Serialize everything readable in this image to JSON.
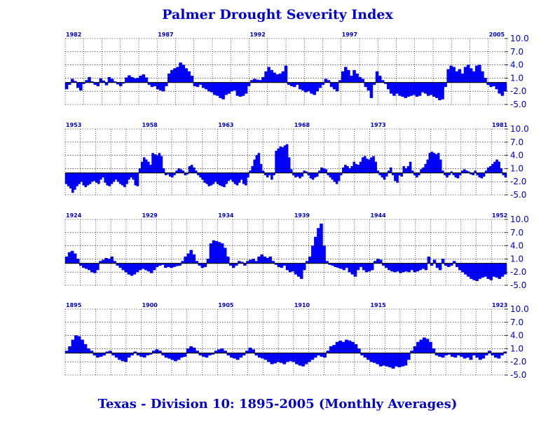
{
  "title": "Palmer Drought Severity Index",
  "subtitle": "Texas - Division 10:  1895-2005 (Monthly Averages)",
  "colors": {
    "fill": "#0000ff",
    "text": "#0000cc",
    "grid": "#000000"
  },
  "chart_data": [
    {
      "type": "area",
      "y_tick_labels": [
        "10.0",
        "7.0",
        "4.0",
        "1.0",
        "-2.0",
        "-5.0"
      ],
      "ylim": [
        -5.0,
        10.0
      ],
      "start_year": 1982,
      "year_labels": [
        "1982",
        "1987",
        "1992",
        "1997",
        "2005"
      ],
      "grid": true,
      "values": [
        -1.5,
        -0.5,
        0.8,
        0.3,
        -1.2,
        -1.8,
        -0.3,
        0.5,
        1.2,
        0.2,
        -0.5,
        -0.8,
        0.9,
        0.4,
        -0.6,
        1.2,
        0.8,
        0.2,
        -0.4,
        -0.8,
        -0.2,
        1.1,
        1.6,
        1.2,
        0.9,
        1.0,
        1.5,
        1.8,
        1.1,
        -0.5,
        -1.0,
        -0.8,
        -1.5,
        -1.8,
        -2.0,
        -0.8,
        2.0,
        2.8,
        3.2,
        3.5,
        4.5,
        4.0,
        3.2,
        2.5,
        1.5,
        -0.8,
        -1.0,
        -0.5,
        -1.2,
        -1.5,
        -2.0,
        -2.2,
        -2.8,
        -3.0,
        -3.5,
        -3.8,
        -2.8,
        -2.5,
        -2.0,
        -1.8,
        -3.0,
        -3.2,
        -3.0,
        -2.5,
        -0.8,
        0.5,
        0.8,
        0.6,
        0.5,
        1.2,
        2.5,
        3.5,
        2.8,
        2.2,
        1.8,
        2.0,
        2.5,
        3.8,
        -0.5,
        -0.8,
        -1.0,
        -0.5,
        -1.5,
        -1.8,
        -2.2,
        -2.0,
        -2.5,
        -2.8,
        -2.0,
        -1.2,
        -0.5,
        0.8,
        0.5,
        -1.0,
        -1.5,
        -2.0,
        0.5,
        2.5,
        3.5,
        2.8,
        1.5,
        2.8,
        2.0,
        1.2,
        0.8,
        -1.0,
        -1.8,
        -3.5,
        -0.5,
        2.5,
        1.5,
        0.5,
        -0.3,
        -1.5,
        -2.5,
        -3.0,
        -2.5,
        -3.0,
        -3.2,
        -3.5,
        -3.2,
        -3.0,
        -2.8,
        -3.2,
        -3.0,
        -2.2,
        -2.5,
        -3.0,
        -2.8,
        -3.2,
        -3.5,
        -4.0,
        -3.8,
        -1.0,
        3.0,
        3.8,
        3.5,
        2.5,
        3.0,
        2.0,
        3.5,
        4.0,
        3.2,
        2.5,
        3.8,
        4.0,
        2.5,
        1.0,
        -0.5,
        -1.0,
        -0.8,
        -1.5,
        -2.5,
        -3.0,
        -2.0
      ]
    },
    {
      "type": "area",
      "y_tick_labels": [
        "10.0",
        "7.0",
        "4.0",
        "1.0",
        "-2.0",
        "-5.0"
      ],
      "ylim": [
        -5.0,
        10.0
      ],
      "start_year": 1953,
      "year_labels": [
        "1953",
        "1958",
        "1963",
        "1968",
        "1973",
        "1981"
      ],
      "grid": true,
      "values": [
        -2.5,
        -3.0,
        -3.5,
        -4.5,
        -3.8,
        -3.0,
        -2.5,
        -2.0,
        -2.8,
        -3.2,
        -2.8,
        -2.5,
        -2.0,
        -1.8,
        -2.2,
        -2.5,
        -1.5,
        -1.0,
        -2.2,
        -2.8,
        -3.0,
        -2.5,
        -2.0,
        -1.5,
        -2.0,
        -2.5,
        -2.8,
        -3.2,
        -2.5,
        -1.5,
        -1.0,
        -1.5,
        -2.8,
        -3.0,
        1.0,
        2.5,
        3.5,
        3.0,
        2.5,
        1.8,
        4.5,
        4.2,
        4.0,
        4.5,
        3.8,
        1.0,
        -0.5,
        -0.3,
        -0.8,
        -1.0,
        -0.5,
        0.5,
        1.0,
        0.8,
        0.5,
        -0.5,
        -0.3,
        1.5,
        1.8,
        1.2,
        0.5,
        -0.5,
        -1.0,
        -1.5,
        -2.2,
        -2.5,
        -3.0,
        -2.8,
        -2.5,
        -2.0,
        -2.5,
        -2.8,
        -3.0,
        -3.2,
        -2.5,
        -1.8,
        -1.5,
        -2.0,
        -2.5,
        -2.8,
        -2.2,
        -1.5,
        -2.5,
        -2.8,
        -1.0,
        0.5,
        1.5,
        3.0,
        4.0,
        4.5,
        2.0,
        0.5,
        -0.5,
        -1.0,
        -0.5,
        -1.5,
        -0.5,
        5.0,
        5.5,
        6.0,
        5.8,
        6.2,
        6.5,
        3.5,
        0.8,
        -0.5,
        -1.0,
        -0.8,
        -1.2,
        -0.8,
        0.5,
        0.3,
        -0.5,
        -1.2,
        -1.5,
        -1.0,
        -0.8,
        0.5,
        1.2,
        1.0,
        0.8,
        -0.5,
        -1.0,
        -1.5,
        -2.0,
        -2.5,
        -1.8,
        -0.5,
        1.2,
        1.8,
        1.5,
        1.0,
        1.5,
        2.5,
        2.0,
        1.8,
        2.5,
        3.5,
        3.8,
        3.2,
        3.0,
        3.5,
        3.8,
        2.5,
        0.5,
        -0.5,
        -1.0,
        -1.5,
        -0.8,
        0.5,
        1.2,
        -0.5,
        -1.8,
        -2.2,
        -0.5,
        -0.8,
        1.5,
        1.0,
        1.5,
        2.5,
        0.5,
        -0.5,
        -1.0,
        -0.5,
        0.8,
        1.2,
        2.0,
        3.0,
        4.5,
        4.8,
        4.5,
        4.2,
        4.5,
        3.0,
        0.5,
        -0.5,
        -1.0,
        -0.5,
        0.3,
        -0.5,
        -1.0,
        -1.2,
        -0.5,
        0.5,
        0.8,
        0.5,
        0.3,
        -0.3,
        -0.5,
        0.5,
        -0.5,
        -1.0,
        -1.2,
        -0.8,
        0.5,
        1.2,
        1.5,
        2.0,
        2.5,
        3.0,
        2.5,
        1.0,
        -0.5,
        -1.0
      ]
    },
    {
      "type": "area",
      "y_tick_labels": [
        "10.0",
        "7.0",
        "4.0",
        "1.0",
        "-2.0",
        "-5.0"
      ],
      "ylim": [
        -5.0,
        10.0
      ],
      "start_year": 1924,
      "year_labels": [
        "1924",
        "1929",
        "1934",
        "1939",
        "1944",
        "1952"
      ],
      "grid": true,
      "values": [
        1.5,
        2.5,
        2.8,
        2.2,
        1.0,
        -0.5,
        -1.0,
        -1.2,
        -1.5,
        -2.0,
        -2.2,
        -1.5,
        0.5,
        0.8,
        1.2,
        1.0,
        1.5,
        0.5,
        -0.5,
        -1.0,
        -1.5,
        -2.0,
        -2.5,
        -2.8,
        -2.5,
        -2.0,
        -1.5,
        -1.2,
        -1.5,
        -1.8,
        -2.2,
        -1.5,
        -0.8,
        -0.5,
        -0.3,
        -1.0,
        -0.8,
        -1.0,
        -0.8,
        -0.6,
        -0.5,
        0.5,
        1.5,
        2.2,
        3.0,
        2.0,
        0.5,
        -0.5,
        -1.0,
        -0.8,
        1.0,
        4.5,
        5.2,
        5.0,
        4.8,
        4.5,
        3.5,
        1.5,
        -0.5,
        -1.0,
        -0.5,
        0.5,
        0.3,
        -0.5,
        0.5,
        0.8,
        1.0,
        0.5,
        1.5,
        2.0,
        1.5,
        1.2,
        1.5,
        0.5,
        -0.3,
        -0.8,
        -1.0,
        -0.5,
        -1.5,
        -2.0,
        -1.8,
        -2.5,
        -3.0,
        -3.5,
        -1.5,
        0.5,
        1.5,
        4.0,
        6.0,
        8.0,
        9.0,
        4.0,
        0.5,
        -0.3,
        -0.5,
        -0.8,
        -1.0,
        -1.2,
        -1.5,
        -1.0,
        -2.0,
        -2.5,
        -3.0,
        -1.5,
        -0.8,
        -1.5,
        -2.0,
        -1.8,
        -1.5,
        0.5,
        1.0,
        0.8,
        -0.5,
        -1.0,
        -1.5,
        -1.8,
        -2.0,
        -1.8,
        -2.2,
        -2.0,
        -1.8,
        -2.0,
        -1.5,
        -2.0,
        -1.8,
        -1.5,
        -1.2,
        -1.5,
        1.5,
        -0.5,
        0.8,
        -1.0,
        -1.5,
        1.0,
        -0.5,
        -0.8,
        -0.5,
        0.5,
        -0.8,
        -1.5,
        -2.0,
        -2.5,
        -3.0,
        -3.5,
        -3.8,
        -4.0,
        -3.5,
        -3.2,
        -3.0,
        -3.5,
        -3.8,
        -3.0,
        -3.2,
        -3.5,
        -3.0,
        -2.5
      ]
    },
    {
      "type": "area",
      "y_tick_labels": [
        "10.0",
        "7.0",
        "4.0",
        "1.0",
        "-2.0",
        "-5.0"
      ],
      "ylim": [
        -5.0,
        10.0
      ],
      "start_year": 1895,
      "year_labels": [
        "1895",
        "1900",
        "1905",
        "1910",
        "1915",
        "1923"
      ],
      "grid": true,
      "values": [
        0.5,
        1.5,
        3.0,
        4.0,
        3.8,
        3.0,
        2.0,
        1.0,
        0.5,
        -0.5,
        -1.0,
        -0.8,
        -0.5,
        0.3,
        0.5,
        -0.5,
        -1.0,
        -1.5,
        -1.8,
        -2.0,
        -1.0,
        -0.5,
        0.3,
        -0.5,
        -0.8,
        -1.0,
        -0.5,
        -0.3,
        0.5,
        0.8,
        0.5,
        -0.5,
        -1.0,
        -1.2,
        -1.5,
        -1.8,
        -1.5,
        -1.0,
        -0.8,
        1.0,
        1.5,
        1.2,
        0.5,
        -0.5,
        -0.8,
        -1.0,
        -0.5,
        -0.3,
        0.5,
        0.8,
        1.0,
        0.5,
        -0.5,
        -1.0,
        -1.2,
        -1.5,
        -1.0,
        -0.5,
        0.5,
        1.2,
        0.8,
        -0.5,
        -1.0,
        -1.2,
        -1.5,
        -2.0,
        -2.5,
        -2.3,
        -2.0,
        -2.2,
        -2.5,
        -2.0,
        -1.8,
        -2.0,
        -2.5,
        -2.8,
        -3.0,
        -2.5,
        -2.0,
        -1.5,
        -1.0,
        -0.5,
        -0.8,
        -1.0,
        0.5,
        1.5,
        1.8,
        2.5,
        2.8,
        2.5,
        3.0,
        2.8,
        2.5,
        2.0,
        1.0,
        -0.5,
        -1.0,
        -1.5,
        -2.0,
        -2.2,
        -2.5,
        -3.0,
        -2.8,
        -3.0,
        -3.2,
        -3.5,
        -3.0,
        -3.2,
        -3.0,
        -2.8,
        -1.5,
        0.5,
        1.5,
        2.5,
        3.0,
        3.5,
        3.2,
        2.5,
        1.0,
        -0.5,
        -0.8,
        -1.0,
        -0.5,
        -0.3,
        -0.8,
        -1.0,
        -0.5,
        -0.8,
        -1.2,
        -1.0,
        -1.5,
        -0.5,
        -1.0,
        -1.5,
        -1.2,
        -0.5,
        0.5,
        -0.5,
        -1.0,
        -1.2,
        -0.5,
        0.3
      ]
    }
  ]
}
